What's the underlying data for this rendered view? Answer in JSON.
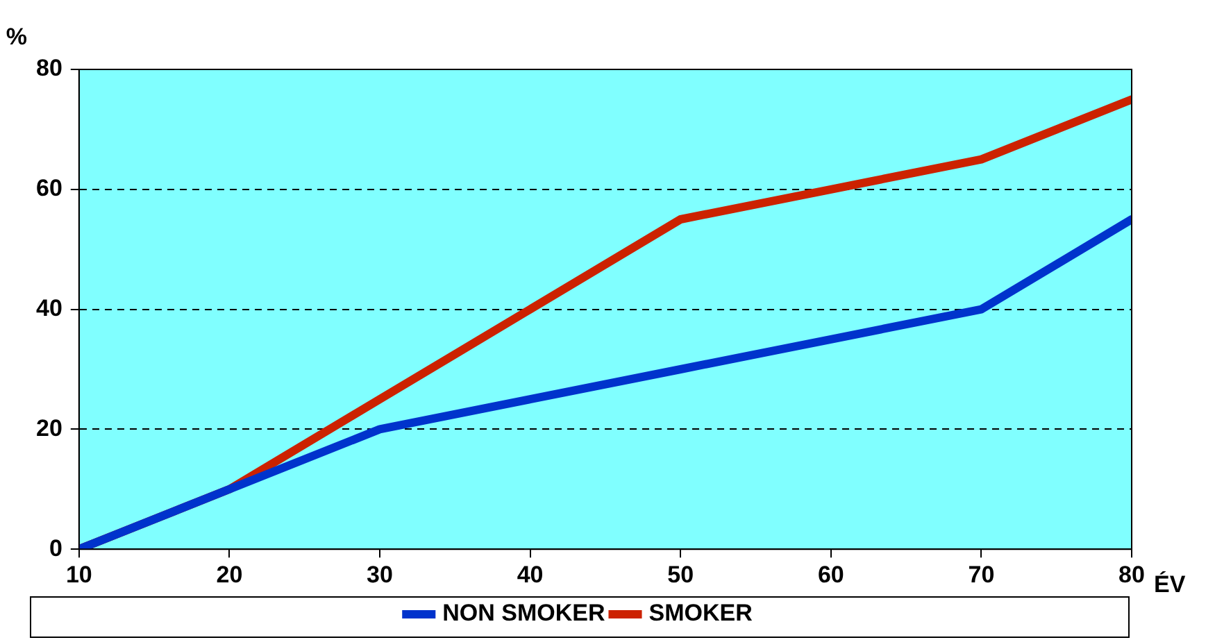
{
  "chart_data": {
    "type": "line",
    "xlabel": "ÉV",
    "ylabel": "%",
    "x": [
      10,
      20,
      30,
      40,
      50,
      60,
      70,
      80
    ],
    "series": [
      {
        "name": "NON SMOKER",
        "color": "#0033cc",
        "values": [
          0,
          10,
          20,
          25,
          30,
          35,
          40,
          55
        ]
      },
      {
        "name": "SMOKER",
        "color": "#cc2200",
        "values": [
          0,
          10,
          25,
          40,
          55,
          60,
          65,
          75
        ]
      }
    ],
    "xlim": [
      10,
      80
    ],
    "xticks": [
      10,
      20,
      30,
      40,
      50,
      60,
      70,
      80
    ],
    "ylim": [
      0,
      80
    ],
    "yticks": [
      0,
      20,
      40,
      60,
      80
    ],
    "grid": "y",
    "legend": "bottom",
    "marker": "none",
    "line_style": "solid"
  }
}
